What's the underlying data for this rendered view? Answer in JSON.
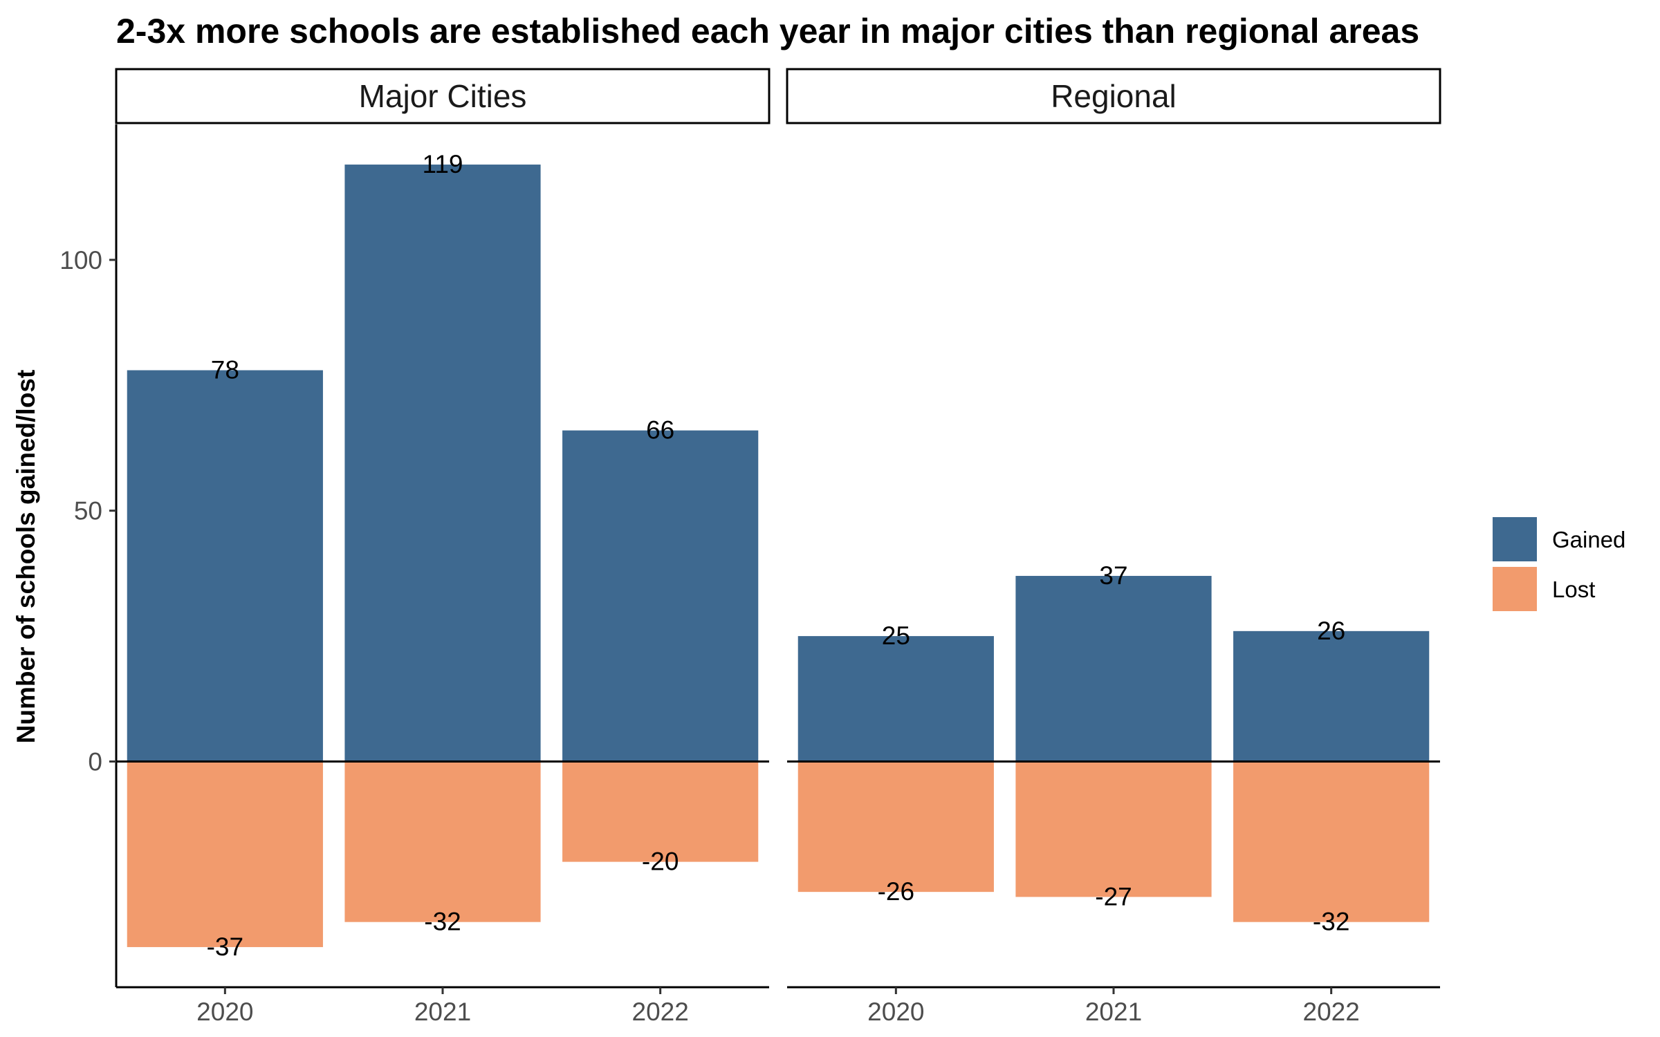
{
  "chart_data": {
    "type": "bar",
    "title": "2-3x more schools are established each year in major cities than regional areas",
    "ylabel": "Number of schools gained/lost",
    "xlabel": "",
    "categories": [
      "2020",
      "2021",
      "2022"
    ],
    "ylim": [
      -45,
      127
    ],
    "yticks": [
      0,
      50,
      100
    ],
    "grid": false,
    "legend_position": "right",
    "series_colors": {
      "Gained": "#3e6990",
      "Lost": "#f29b6d"
    },
    "legend": [
      "Gained",
      "Lost"
    ],
    "panels": [
      {
        "label": "Major Cities",
        "series": [
          {
            "name": "Gained",
            "values": [
              78,
              119,
              66
            ]
          },
          {
            "name": "Lost",
            "values": [
              -37,
              -32,
              -20
            ]
          }
        ]
      },
      {
        "label": "Regional",
        "series": [
          {
            "name": "Gained",
            "values": [
              25,
              37,
              26
            ]
          },
          {
            "name": "Lost",
            "values": [
              -26,
              -27,
              -32
            ]
          }
        ]
      }
    ]
  }
}
